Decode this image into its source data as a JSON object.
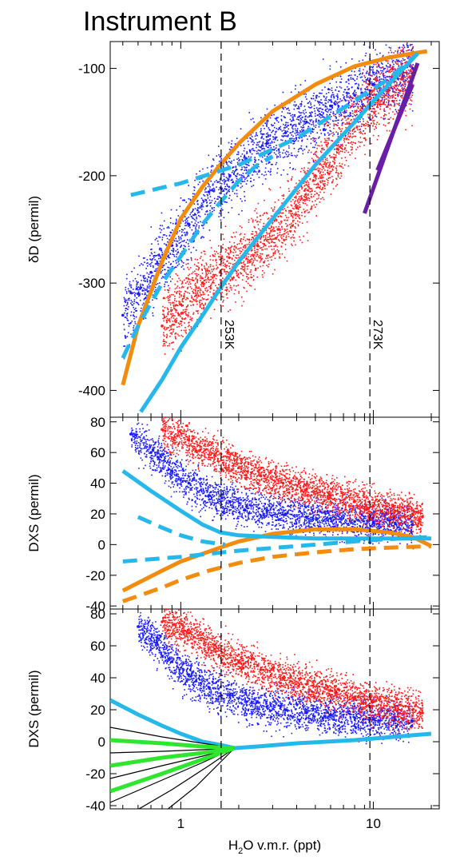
{
  "figure": {
    "title": "Instrument B",
    "xlabel": "H₂O v.m.r. (ppt)",
    "xlabel_main": "H",
    "xlabel_sub": "2",
    "xlabel_rest": "O v.m.r. (ppt)",
    "x_scale": "log",
    "xlim": [
      0.43,
      22
    ],
    "xticks": [
      {
        "value": 1,
        "label": "1"
      },
      {
        "value": 10,
        "label": "10"
      }
    ],
    "reference_lines": [
      {
        "x": 1.62,
        "label": "253K",
        "style": "dashed"
      },
      {
        "x": 9.6,
        "label": "273K",
        "style": "dashed"
      }
    ]
  },
  "colors": {
    "obs_blue": "#1a1aff",
    "obs_red": "#ff1a1a",
    "orange": "#f28c0f",
    "cyan": "#26b8ea",
    "purple": "#6a1ea5",
    "green": "#2ee62e",
    "black": "#000000"
  },
  "chart_data": [
    {
      "type": "scatter",
      "ylabel": "δD (permil)",
      "ylim": [
        -425,
        -75
      ],
      "yticks": [
        -400,
        -300,
        -200,
        -100
      ],
      "series": [
        {
          "kind": "observations-blue",
          "color": "#1a1aff",
          "x": [
            0.5,
            0.6,
            0.7,
            0.9,
            1.1,
            1.4,
            1.8,
            2.2,
            2.8,
            3.5,
            4.5,
            6,
            8,
            10,
            13,
            16
          ],
          "y": [
            -330,
            -310,
            -290,
            -265,
            -245,
            -215,
            -200,
            -185,
            -170,
            -160,
            -150,
            -135,
            -125,
            -115,
            -108,
            -100
          ]
        },
        {
          "kind": "observations-red",
          "color": "#ff1a1a",
          "x": [
            0.8,
            1.0,
            1.3,
            1.6,
            2.0,
            2.5,
            3.2,
            4.0,
            5.0,
            6.5,
            8.0,
            10,
            12,
            14,
            16
          ],
          "y": [
            -340,
            -320,
            -300,
            -290,
            -280,
            -265,
            -250,
            -230,
            -200,
            -175,
            -150,
            -130,
            -120,
            -110,
            -105
          ]
        },
        {
          "kind": "orange-curve",
          "color": "#f28c0f",
          "dash": "solid",
          "x": [
            0.5,
            0.6,
            0.8,
            1.0,
            1.3,
            1.6,
            2.0,
            3.0,
            5.0,
            8.0,
            12,
            16,
            19
          ],
          "y": [
            -395,
            -340,
            -280,
            -240,
            -210,
            -190,
            -170,
            -140,
            -115,
            -98,
            -90,
            -86,
            -84
          ]
        },
        {
          "kind": "cyan-solid-curve",
          "color": "#26b8ea",
          "dash": "solid",
          "x": [
            0.62,
            0.8,
            1.0,
            1.3,
            1.6,
            2.0,
            3.0,
            5.0,
            8.0,
            12,
            17
          ],
          "y": [
            -420,
            -390,
            -360,
            -330,
            -305,
            -280,
            -240,
            -190,
            -150,
            -115,
            -86
          ]
        },
        {
          "kind": "cyan-dashed-steep",
          "color": "#26b8ea",
          "dash": "dashed",
          "x": [
            0.5,
            0.6,
            0.8,
            1.0,
            1.3,
            1.6,
            2.0,
            2.5,
            3.0
          ],
          "y": [
            -370,
            -340,
            -300,
            -275,
            -245,
            -225,
            -205,
            -190,
            -182
          ]
        },
        {
          "kind": "cyan-dashed-shallow",
          "color": "#26b8ea",
          "dash": "dashed",
          "x": [
            0.55,
            1.0,
            2.0,
            4.0,
            8.0,
            12,
            17
          ],
          "y": [
            -218,
            -207,
            -190,
            -165,
            -130,
            -110,
            -86
          ]
        },
        {
          "kind": "purple-line-1",
          "color": "#6a1ea5",
          "dash": "solid",
          "x": [
            9.0,
            17
          ],
          "y": [
            -235,
            -95
          ]
        },
        {
          "kind": "purple-line-2",
          "color": "#6a1ea5",
          "dash": "solid",
          "x": [
            10.5,
            16
          ],
          "y": [
            -195,
            -115
          ]
        }
      ]
    },
    {
      "type": "scatter",
      "ylabel": "DXS (permil)",
      "ylim": [
        -42,
        83
      ],
      "yticks": [
        -40,
        -20,
        0,
        20,
        40,
        60,
        80
      ],
      "series": [
        {
          "kind": "observations-blue",
          "color": "#1a1aff",
          "x": [
            0.55,
            0.7,
            0.9,
            1.1,
            1.4,
            1.8,
            2.2,
            2.8,
            3.5,
            4.5,
            6,
            8,
            10,
            13,
            16
          ],
          "y": [
            72,
            60,
            48,
            40,
            32,
            28,
            25,
            22,
            20,
            18,
            17,
            15,
            14,
            14,
            13
          ]
        },
        {
          "kind": "observations-red",
          "color": "#ff1a1a",
          "x": [
            0.8,
            1.1,
            1.5,
            2.0,
            2.6,
            3.4,
            4.5,
            6,
            8,
            10,
            13,
            16,
            18
          ],
          "y": [
            75,
            68,
            58,
            50,
            45,
            40,
            36,
            32,
            28,
            25,
            22,
            20,
            18
          ]
        },
        {
          "kind": "orange-solid-curve",
          "color": "#f28c0f",
          "dash": "solid",
          "x": [
            0.5,
            0.8,
            1.0,
            1.3,
            1.6,
            2.0,
            3.0,
            5.0,
            8.0,
            12,
            16,
            20
          ],
          "y": [
            -30,
            -17,
            -11,
            -6,
            -2,
            2,
            7,
            10,
            10,
            8,
            5,
            -1
          ]
        },
        {
          "kind": "orange-dashed-curve",
          "color": "#f28c0f",
          "dash": "dashed",
          "x": [
            0.5,
            0.8,
            1.0,
            1.4,
            2.0,
            3.0,
            5.0,
            8.0,
            12,
            20
          ],
          "y": [
            -37,
            -28,
            -23,
            -17,
            -12,
            -8,
            -5,
            -3,
            -2,
            -1
          ]
        },
        {
          "kind": "cyan-solid-curve",
          "color": "#26b8ea",
          "dash": "solid",
          "x": [
            0.5,
            0.7,
            1.0,
            1.3,
            1.6,
            2.0,
            3.0,
            5.0,
            10,
            20
          ],
          "y": [
            48,
            35,
            22,
            13,
            8,
            6,
            5,
            4,
            4,
            4
          ]
        },
        {
          "kind": "cyan-dashed-steep",
          "color": "#26b8ea",
          "dash": "dashed",
          "x": [
            0.6,
            0.8,
            1.0,
            1.3,
            1.7
          ],
          "y": [
            18,
            11,
            6,
            2,
            0
          ]
        },
        {
          "kind": "cyan-dashed-shallow",
          "color": "#26b8ea",
          "dash": "dashed",
          "x": [
            0.5,
            1.0,
            2.0,
            5.0,
            10,
            20
          ],
          "y": [
            -11,
            -8,
            -4,
            0,
            3,
            5
          ]
        }
      ]
    },
    {
      "type": "scatter",
      "ylabel": "DXS (permil)",
      "ylim": [
        -42,
        83
      ],
      "yticks": [
        -40,
        -20,
        0,
        20,
        40,
        60,
        80
      ],
      "series": [
        {
          "kind": "observations-blue",
          "color": "#1a1aff",
          "x": [
            0.6,
            0.75,
            0.9,
            1.1,
            1.4,
            1.8,
            2.2,
            2.8,
            3.5,
            4.5,
            6,
            8,
            10,
            13,
            16
          ],
          "y": [
            72,
            62,
            50,
            42,
            34,
            29,
            25,
            22,
            20,
            18,
            17,
            15,
            14,
            14,
            13
          ]
        },
        {
          "kind": "observations-red",
          "color": "#ff1a1a",
          "x": [
            0.8,
            1.1,
            1.5,
            2.0,
            2.6,
            3.4,
            4.5,
            6,
            8,
            10,
            13,
            16,
            18
          ],
          "y": [
            75,
            68,
            58,
            50,
            45,
            40,
            36,
            32,
            28,
            25,
            22,
            20,
            18
          ]
        },
        {
          "kind": "cyan-solid-curve",
          "color": "#26b8ea",
          "dash": "solid",
          "x": [
            0.43,
            0.6,
            0.8,
            1.0,
            1.3,
            1.6,
            1.9,
            2.5,
            4.0,
            8.0,
            20
          ],
          "y": [
            26,
            17,
            10,
            5,
            0,
            -2,
            -4,
            -3,
            -1,
            1,
            5
          ]
        },
        {
          "kind": "black-curve",
          "color": "#000000",
          "dash": "solid",
          "x": [
            0.43,
            0.8,
            1.3,
            1.9
          ],
          "y": [
            9,
            3,
            -1,
            -4
          ]
        },
        {
          "kind": "black-curve",
          "color": "#000000",
          "dash": "solid",
          "x": [
            0.43,
            0.8,
            1.3,
            1.9
          ],
          "y": [
            -7,
            -6,
            -5,
            -4
          ]
        },
        {
          "kind": "black-curve",
          "color": "#000000",
          "dash": "solid",
          "x": [
            0.43,
            0.8,
            1.3,
            1.9
          ],
          "y": [
            -23,
            -15,
            -9,
            -4
          ]
        },
        {
          "kind": "black-curve",
          "color": "#000000",
          "dash": "solid",
          "x": [
            0.43,
            0.8,
            1.3,
            1.9
          ],
          "y": [
            -38,
            -24,
            -13,
            -4
          ]
        },
        {
          "kind": "black-curve",
          "color": "#000000",
          "dash": "solid",
          "x": [
            0.55,
            0.9,
            1.4,
            1.9
          ],
          "y": [
            -45,
            -30,
            -15,
            -4
          ]
        },
        {
          "kind": "black-curve",
          "color": "#000000",
          "dash": "solid",
          "x": [
            0.8,
            1.2,
            1.6,
            1.9
          ],
          "y": [
            -45,
            -28,
            -13,
            -4
          ]
        },
        {
          "kind": "green-curve",
          "color": "#2ee62e",
          "dash": "solid",
          "x": [
            0.43,
            0.8,
            1.3,
            1.9
          ],
          "y": [
            1,
            -1,
            -3,
            -4
          ]
        },
        {
          "kind": "green-curve",
          "color": "#2ee62e",
          "dash": "solid",
          "x": [
            0.43,
            0.8,
            1.3,
            1.9
          ],
          "y": [
            -15,
            -10,
            -7,
            -4
          ]
        },
        {
          "kind": "green-curve",
          "color": "#2ee62e",
          "dash": "solid",
          "x": [
            0.43,
            0.8,
            1.3,
            1.9
          ],
          "y": [
            -31,
            -20,
            -11,
            -4
          ]
        }
      ]
    }
  ]
}
